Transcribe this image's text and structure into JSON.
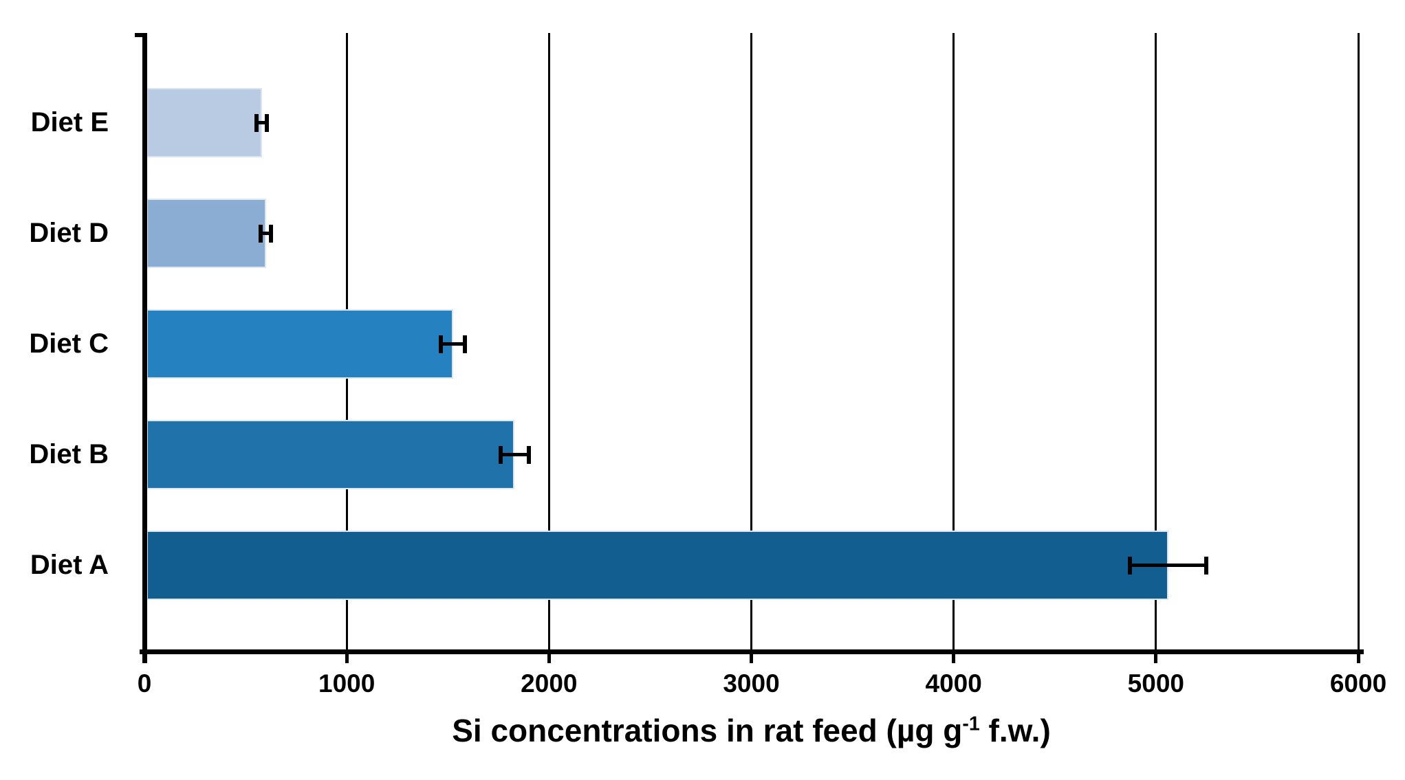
{
  "chart_data": {
    "type": "bar",
    "orientation": "horizontal",
    "title": "",
    "xlabel": "Si concentrations in rat feed (µg g⁻¹ f.w.)",
    "xlabel_prefix": "Si concentrations in rat feed (µg g",
    "xlabel_superscript": "-1",
    "xlabel_suffix": " f.w.)",
    "categories_top_to_bottom": [
      "Diet E",
      "Diet D",
      "Diet C",
      "Diet B",
      "Diet A"
    ],
    "series": [
      {
        "name": "Si concentration",
        "values_top_to_bottom": [
          570,
          590,
          1515,
          1820,
          5050
        ],
        "error_bars_plus_minus": [
          25,
          25,
          60,
          70,
          190
        ]
      }
    ],
    "bar_colors_top_to_bottom": [
      "#b8cbe2",
      "#8badd3",
      "#2581c0",
      "#1f72aa",
      "#135e91"
    ],
    "xlim": [
      0,
      6000
    ],
    "x_ticks": [
      0,
      1000,
      2000,
      3000,
      4000,
      5000,
      6000
    ],
    "grid": "vertical gridlines at each 1000, drawn behind bars",
    "legend": "none",
    "axis_color": "#000000",
    "error_bar_color": "#000000",
    "background_color": "#ffffff"
  }
}
